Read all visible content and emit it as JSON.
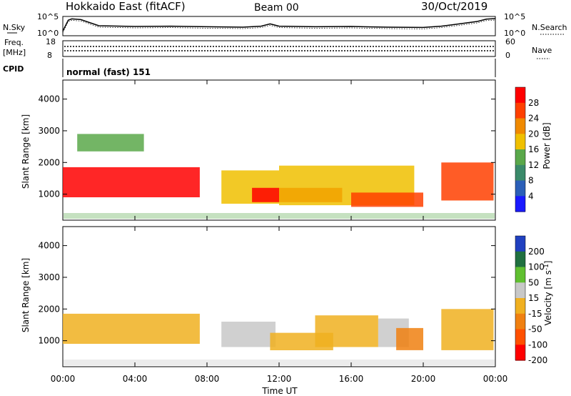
{
  "header": {
    "station": "Hokkaido East (fitACF)",
    "beam": "Beam 00",
    "date": "30/Oct/2019"
  },
  "noise_panel": {
    "left_label": "N.Sky",
    "right_label": "N.Search",
    "y_tick_top": "10^5",
    "y_tick_bottom": "10^0"
  },
  "freq_panel": {
    "left_label_1": "Freq.",
    "left_label_2": "[MHz]",
    "left_tick_top": "18",
    "left_tick_bottom": "8",
    "right_label": "Nave",
    "right_tick_top": "60",
    "right_tick_bottom": "0"
  },
  "cpid_panel": {
    "label": "CPID",
    "mode_text": "normal (fast) 151"
  },
  "power_panel": {
    "ylabel": "Slant Range [km]",
    "yticks": [
      "1000",
      "2000",
      "3000",
      "4000"
    ],
    "colorbar_label": "Power [dB]",
    "colorbar_ticks": [
      "4",
      "8",
      "12",
      "16",
      "20",
      "24",
      "28"
    ]
  },
  "velocity_panel": {
    "ylabel": "Slant Range [km]",
    "yticks": [
      "1000",
      "2000",
      "3000",
      "4000"
    ],
    "colorbar_label": "Velocity [m s",
    "colorbar_label_sup": "-1",
    "colorbar_label_end": "]",
    "colorbar_ticks": [
      "200",
      "100",
      "50",
      "15",
      "-15",
      "-50",
      "-100",
      "-200"
    ]
  },
  "xaxis": {
    "label": "Time UT",
    "ticks": [
      "00:00",
      "04:00",
      "08:00",
      "12:00",
      "16:00",
      "20:00",
      "00:00"
    ]
  },
  "colors": {
    "power_scale": [
      "#1a1aff",
      "#2b5fb8",
      "#3a8a6a",
      "#5aa84a",
      "#f0c000",
      "#f08a00",
      "#ff4000",
      "#ff0000"
    ],
    "velocity_scale": [
      "#2040c0",
      "#207040",
      "#60c030",
      "#c8c8c8",
      "#f0b020",
      "#f08010",
      "#ff5000",
      "#ff0000"
    ]
  },
  "chart_data": [
    {
      "type": "line",
      "title": "N.Sky",
      "x_range_hours": [
        0,
        24
      ],
      "y_scale": "log",
      "ylim": [
        1,
        100000
      ],
      "x": [
        0,
        0.3,
        0.5,
        1.0,
        2,
        4,
        6,
        8,
        10,
        11,
        11.5,
        12,
        14,
        16,
        18,
        20,
        21,
        22,
        23,
        23.5,
        24
      ],
      "values": [
        10,
        20000,
        50000,
        30000,
        400,
        250,
        300,
        200,
        150,
        300,
        1500,
        300,
        200,
        250,
        150,
        120,
        300,
        1500,
        8000,
        40000,
        60000
      ]
    },
    {
      "type": "line",
      "title": "Freq / Nave",
      "x_range_hours": [
        0,
        24
      ],
      "series": [
        {
          "name": "Freq.",
          "ylim": [
            8,
            18
          ],
          "x": [
            0,
            24
          ],
          "values": [
            10.7,
            10.7
          ]
        },
        {
          "name": "Nave",
          "ylim": [
            0,
            60
          ],
          "x": [
            0,
            24
          ],
          "values": [
            26,
            26
          ]
        }
      ]
    },
    {
      "type": "heatmap",
      "title": "Power [dB]",
      "xlabel": "Time UT",
      "ylabel": "Slant Range [km]",
      "x_range_hours": [
        0,
        24
      ],
      "ylim": [
        180,
        4600
      ],
      "zlim": [
        0,
        32
      ],
      "regions": [
        {
          "t0": 0.0,
          "t1": 7.6,
          "r0": 900,
          "r1": 1850,
          "power": 28
        },
        {
          "t0": 0.8,
          "t1": 4.5,
          "r0": 2350,
          "r1": 2900,
          "power": 12
        },
        {
          "t0": 8.8,
          "t1": 12.0,
          "r0": 700,
          "r1": 1750,
          "power": 18
        },
        {
          "t0": 10.5,
          "t1": 15.5,
          "r0": 750,
          "r1": 1200,
          "power": 28
        },
        {
          "t0": 12.0,
          "t1": 19.5,
          "r0": 650,
          "r1": 1900,
          "power": 16
        },
        {
          "t0": 16.0,
          "t1": 20.0,
          "r0": 600,
          "r1": 1050,
          "power": 26
        },
        {
          "t0": 21.0,
          "t1": 23.9,
          "r0": 800,
          "r1": 2000,
          "power": 26
        }
      ]
    },
    {
      "type": "heatmap",
      "title": "Velocity [m s-1]",
      "xlabel": "Time UT",
      "ylabel": "Slant Range [km]",
      "x_range_hours": [
        0,
        24
      ],
      "ylim": [
        180,
        4600
      ],
      "zlim": [
        -250,
        250
      ],
      "regions": [
        {
          "t0": 0.0,
          "t1": 7.6,
          "r0": 900,
          "r1": 1850,
          "velocity": 0
        },
        {
          "t0": 8.8,
          "t1": 11.8,
          "r0": 800,
          "r1": 1600,
          "velocity": 40
        },
        {
          "t0": 11.5,
          "t1": 15.0,
          "r0": 700,
          "r1": 1250,
          "velocity": -40
        },
        {
          "t0": 14.0,
          "t1": 17.5,
          "r0": 800,
          "r1": 1800,
          "velocity": 0
        },
        {
          "t0": 17.5,
          "t1": 19.2,
          "r0": 800,
          "r1": 1700,
          "velocity": 30
        },
        {
          "t0": 18.5,
          "t1": 20.0,
          "r0": 700,
          "r1": 1400,
          "velocity": -70
        },
        {
          "t0": 21.0,
          "t1": 23.9,
          "r0": 700,
          "r1": 2000,
          "velocity": 0
        }
      ]
    }
  ]
}
